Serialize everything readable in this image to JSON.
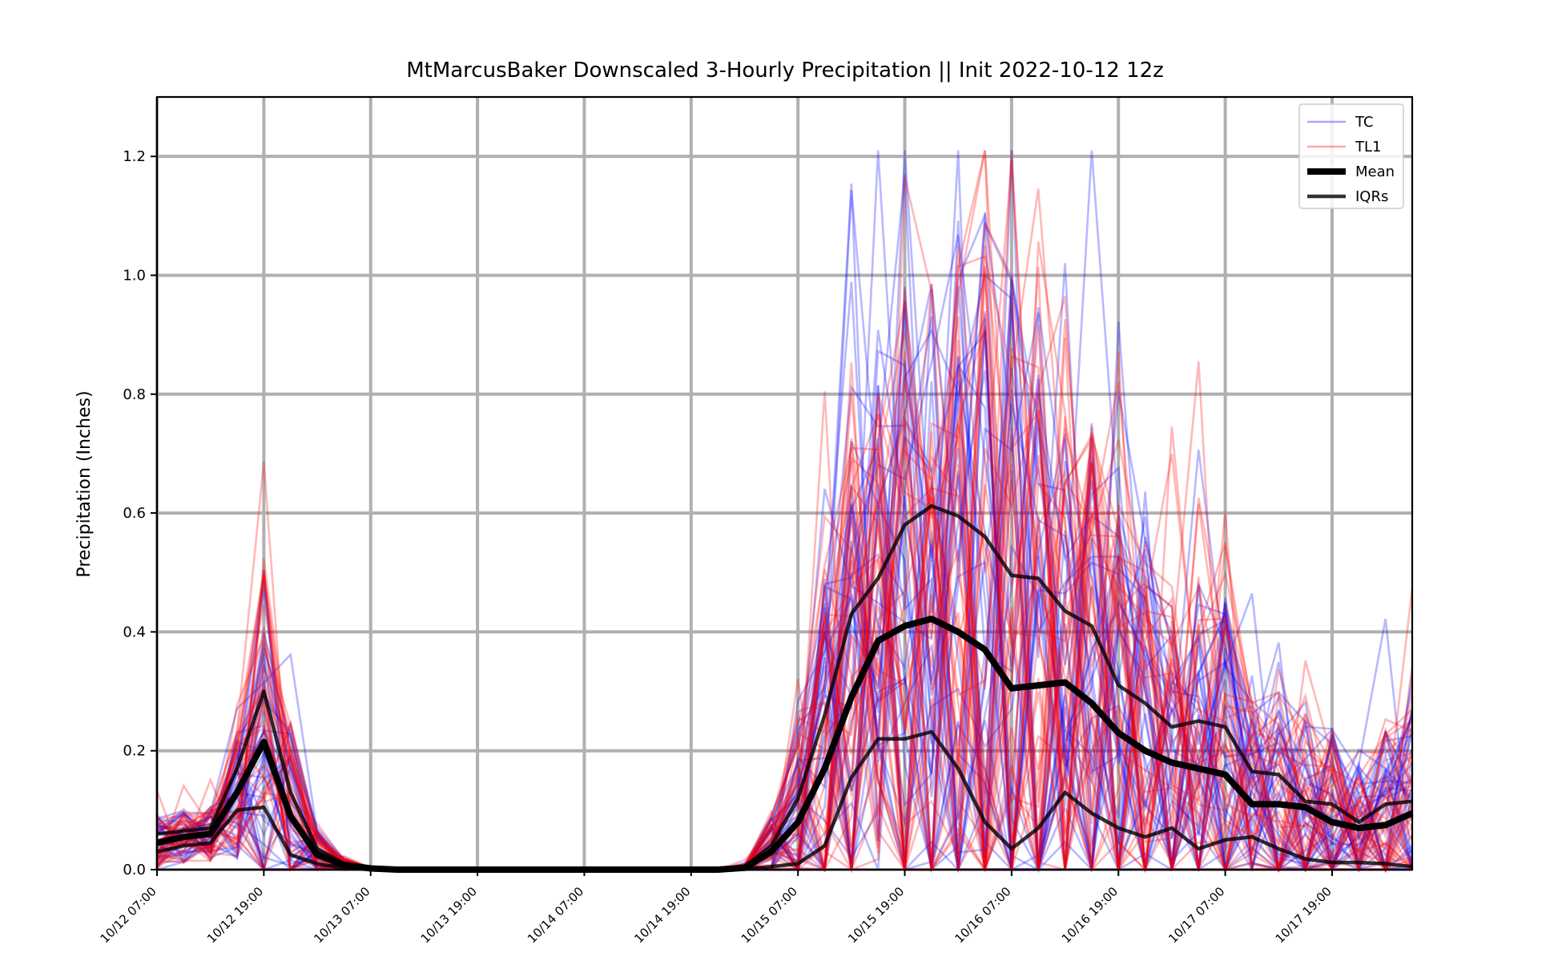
{
  "chart_data": {
    "type": "line",
    "title": "MtMarcusBaker Downscaled 3-Hourly Precipitation || Init 2022-10-12 12z",
    "xlabel": "",
    "ylabel": "Precipitation (Inches)",
    "ylim": [
      0,
      1.3
    ],
    "y_ticks": [
      0.0,
      0.2,
      0.4,
      0.6,
      0.8,
      1.0,
      1.2
    ],
    "y_tick_labels": [
      "0.0",
      "0.2",
      "0.4",
      "0.6",
      "0.8",
      "1.0",
      "1.2"
    ],
    "x_tick_labels": [
      "10/12 07:00",
      "10/12 19:00",
      "10/13 07:00",
      "10/13 19:00",
      "10/14 07:00",
      "10/14 19:00",
      "10/15 07:00",
      "10/15 19:00",
      "10/16 07:00",
      "10/16 19:00",
      "10/17 07:00",
      "10/17 19:00"
    ],
    "x_tick_hours": [
      0,
      12,
      24,
      36,
      48,
      60,
      72,
      84,
      96,
      108,
      120,
      132
    ],
    "x_range_hours": [
      0,
      141
    ],
    "grid": true,
    "legend_position": "top-right",
    "legend": [
      {
        "label": "TC",
        "color": "#0000ff",
        "style": "thin-translucent"
      },
      {
        "label": "TL1",
        "color": "#ff0000",
        "style": "thin-translucent"
      },
      {
        "label": "Mean",
        "color": "#000000",
        "style": "thick"
      },
      {
        "label": "IQRs",
        "color": "#000000",
        "style": "medium"
      }
    ],
    "x_hours": [
      0,
      3,
      6,
      9,
      12,
      15,
      18,
      21,
      24,
      27,
      30,
      33,
      36,
      39,
      42,
      45,
      48,
      51,
      54,
      57,
      60,
      63,
      66,
      69,
      72,
      75,
      78,
      81,
      84,
      87,
      90,
      93,
      96,
      99,
      102,
      105,
      108,
      111,
      114,
      117,
      120,
      123,
      126,
      129,
      132,
      135,
      138,
      141
    ],
    "series": [
      {
        "name": "Mean",
        "role": "mean",
        "color": "#000000",
        "values": [
          0.045,
          0.055,
          0.06,
          0.13,
          0.215,
          0.09,
          0.025,
          0.008,
          0.002,
          0,
          0,
          0,
          0,
          0,
          0,
          0,
          0,
          0,
          0,
          0,
          0,
          0,
          0.003,
          0.03,
          0.08,
          0.17,
          0.29,
          0.385,
          0.41,
          0.422,
          0.4,
          0.37,
          0.305,
          0.31,
          0.315,
          0.28,
          0.23,
          0.2,
          0.18,
          0.17,
          0.16,
          0.11,
          0.11,
          0.105,
          0.08,
          0.07,
          0.075,
          0.095
        ]
      },
      {
        "name": "IQRs",
        "role": "iqr",
        "color": "#000000",
        "values": [
          0.06,
          0.065,
          0.07,
          0.17,
          0.3,
          0.13,
          0.035,
          0.01,
          0.003,
          0,
          0,
          0,
          0,
          0,
          0,
          0,
          0,
          0,
          0,
          0,
          0,
          0,
          0.005,
          0.04,
          0.12,
          0.26,
          0.43,
          0.49,
          0.58,
          0.612,
          0.595,
          0.56,
          0.495,
          0.49,
          0.435,
          0.41,
          0.31,
          0.28,
          0.24,
          0.25,
          0.24,
          0.165,
          0.16,
          0.115,
          0.11,
          0.08,
          0.11,
          0.115
        ]
      },
      {
        "name": "IQRs",
        "role": "iqr",
        "color": "#000000",
        "values": [
          0.03,
          0.04,
          0.045,
          0.1,
          0.105,
          0.025,
          0.01,
          0.003,
          0.001,
          0,
          0,
          0,
          0,
          0,
          0,
          0,
          0,
          0,
          0,
          0,
          0,
          0,
          0.001,
          0.005,
          0.01,
          0.04,
          0.155,
          0.22,
          0.22,
          0.232,
          0.17,
          0.08,
          0.035,
          0.07,
          0.13,
          0.095,
          0.07,
          0.055,
          0.07,
          0.035,
          0.05,
          0.055,
          0.035,
          0.018,
          0.012,
          0.012,
          0.01,
          0.005
        ]
      }
    ],
    "ensemble": {
      "TC": {
        "color": "#0000ff",
        "member_count": 40
      },
      "TL1": {
        "color": "#ff0000",
        "member_count": 40
      }
    }
  }
}
